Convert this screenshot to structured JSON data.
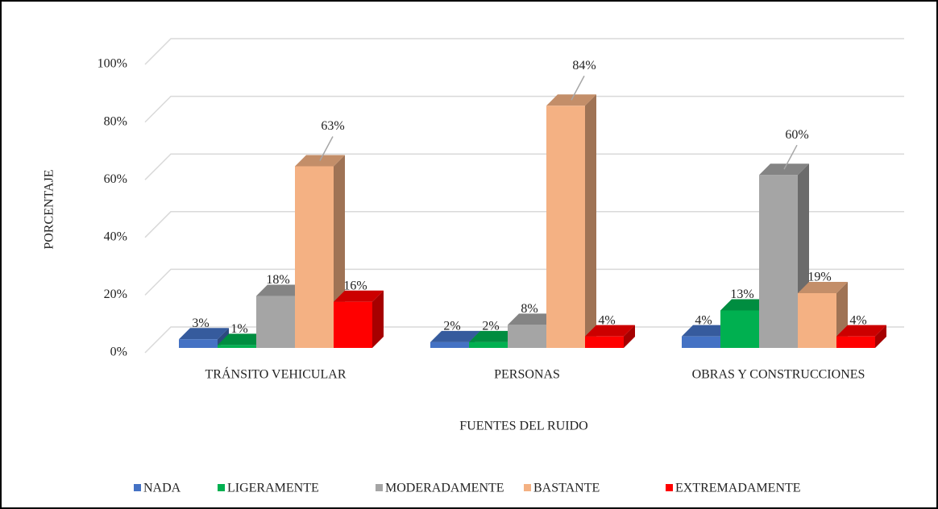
{
  "chart_data": {
    "type": "bar3d",
    "xlabel": "FUENTES DEL RUIDO",
    "ylabel": "PORCENTAJE",
    "categories": [
      "TRÁNSITO VEHICULAR",
      "PERSONAS",
      "OBRAS Y CONSTRUCCIONES"
    ],
    "series": [
      {
        "name": "NADA",
        "color": "#4472c4",
        "values": [
          3,
          2,
          4
        ],
        "value_labels": [
          "3%",
          "2%",
          "4%"
        ]
      },
      {
        "name": "LIGERAMENTE",
        "color": "#00b050",
        "values": [
          1,
          2,
          13
        ],
        "value_labels": [
          "1%",
          "2%",
          "13%"
        ]
      },
      {
        "name": "MODERADAMENTE",
        "color": "#a5a5a5",
        "values": [
          18,
          8,
          60
        ],
        "value_labels": [
          "18%",
          "8%",
          "60%"
        ]
      },
      {
        "name": "BASTANTE",
        "color": "#f4b183",
        "values": [
          63,
          84,
          19
        ],
        "value_labels": [
          "63%",
          "84%",
          "19%"
        ]
      },
      {
        "name": "EXTREMADAMENTE",
        "color": "#ff0000",
        "values": [
          16,
          4,
          4
        ],
        "value_labels": [
          "16%",
          "4%",
          "4%"
        ]
      }
    ],
    "ylim": [
      0,
      100
    ],
    "yticks": [
      {
        "value": 0,
        "label": "0%"
      },
      {
        "value": 20,
        "label": "20%"
      },
      {
        "value": 40,
        "label": "40%"
      },
      {
        "value": 60,
        "label": "60%"
      },
      {
        "value": 80,
        "label": "80%"
      },
      {
        "value": 100,
        "label": "100%"
      }
    ],
    "grid": true,
    "legend": "bottom"
  }
}
